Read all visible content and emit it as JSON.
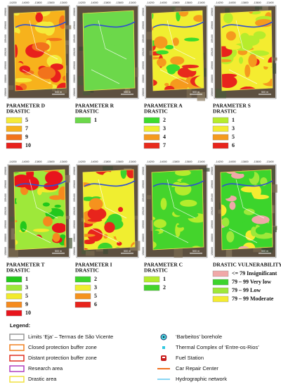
{
  "map_axis": {
    "x": [
      "-14200",
      "-14000",
      "-13800",
      "-13600",
      "-13400"
    ],
    "y": [
      "159800",
      "159600",
      "159400",
      "159200",
      "159000",
      "158800",
      "158600"
    ],
    "scale": "500 m"
  },
  "panels": [
    {
      "title": "PARAMETER D",
      "subtitle": "DRASTIC",
      "classes": [
        {
          "label": "5",
          "color": "#f4ea3a"
        },
        {
          "label": "7",
          "color": "#f7b21c"
        },
        {
          "label": "9",
          "color": "#f2731c"
        },
        {
          "label": "10",
          "color": "#e8201c"
        }
      ]
    },
    {
      "title": "PARAMETER R",
      "subtitle": "DRASTIC",
      "classes": [
        {
          "label": "1",
          "color": "#6cd84a"
        }
      ]
    },
    {
      "title": "PARAMETER A",
      "subtitle": "DRASTIC",
      "classes": [
        {
          "label": "2",
          "color": "#3cdc2c"
        },
        {
          "label": "3",
          "color": "#f0ee30"
        },
        {
          "label": "4",
          "color": "#f59a1e"
        },
        {
          "label": "7",
          "color": "#e82a1c"
        }
      ]
    },
    {
      "title": "PARAMETER S",
      "subtitle": "DRASTIC",
      "classes": [
        {
          "label": "1",
          "color": "#b6ec2c"
        },
        {
          "label": "3",
          "color": "#f4ec30"
        },
        {
          "label": "5",
          "color": "#f59a1e"
        },
        {
          "label": "6",
          "color": "#e8241c"
        }
      ]
    },
    {
      "title": "PARAMETER T",
      "subtitle": "DRASTIC",
      "classes": [
        {
          "label": "1",
          "color": "#22c81c"
        },
        {
          "label": "3",
          "color": "#9ee83a"
        },
        {
          "label": "5",
          "color": "#f2ea2c"
        },
        {
          "label": "9",
          "color": "#f58a1e"
        },
        {
          "label": "10",
          "color": "#e8141c"
        }
      ]
    },
    {
      "title": "PARAMETER I",
      "subtitle": "DRASTIC",
      "classes": [
        {
          "label": "2",
          "color": "#3cd42c"
        },
        {
          "label": "3",
          "color": "#f0ee30"
        },
        {
          "label": "5",
          "color": "#f5921e"
        },
        {
          "label": "6",
          "color": "#e8241c"
        }
      ]
    },
    {
      "title": "PARAMETER C",
      "subtitle": "DRASTIC",
      "classes": [
        {
          "label": "1",
          "color": "#b4ec2c"
        },
        {
          "label": "2",
          "color": "#44d42c"
        }
      ]
    },
    {
      "title": "DRASTIC VULNERABILITY",
      "classes": [
        {
          "label": "<= 79 Insignificant",
          "color": "#f0a8a8"
        },
        {
          "label": "79 – 99 Very low",
          "color": "#3cd42c"
        },
        {
          "label": "79 – 99 Low",
          "color": "#9ee83a"
        },
        {
          "label": "79 – 99 Moderate",
          "color": "#f4ec30"
        }
      ]
    }
  ],
  "legend": {
    "title": "Legend:",
    "left": [
      "Limits ‘Eja’ – Termas de São Vicente",
      "Closed protection buffer zone",
      "Distant protection buffer zone",
      "Research area",
      "Drastic area"
    ],
    "right": [
      "‘Barbeitos’ borehole",
      "Thermal Complex of ‘Entre-os-Rios’",
      "Fuel Station",
      "Car Repair Center",
      "Hydrographic network"
    ]
  }
}
